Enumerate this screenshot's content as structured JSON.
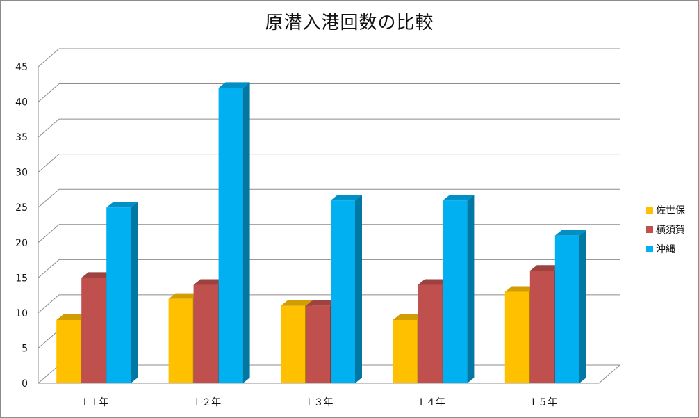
{
  "chart_data": {
    "type": "bar",
    "title": "原潜入港回数の比較",
    "xlabel": "",
    "ylabel": "",
    "categories": [
      "１１年",
      "１２年",
      "１３年",
      "１４年",
      "１５年"
    ],
    "series": [
      {
        "name": "佐世保",
        "values": [
          9,
          12,
          11,
          9,
          13
        ],
        "color": "#FFC000"
      },
      {
        "name": "横須賀",
        "values": [
          15,
          14,
          11,
          14,
          16
        ],
        "color": "#C0504D"
      },
      {
        "name": "沖縄",
        "values": [
          25,
          42,
          26,
          26,
          21
        ],
        "color": "#00B0F0"
      }
    ],
    "ylim": [
      0,
      45
    ],
    "yticks": [
      0,
      5,
      10,
      15,
      20,
      25,
      30,
      35,
      40,
      45
    ],
    "grid": true,
    "legend_position": "right",
    "style": "3d-clustered-column"
  }
}
